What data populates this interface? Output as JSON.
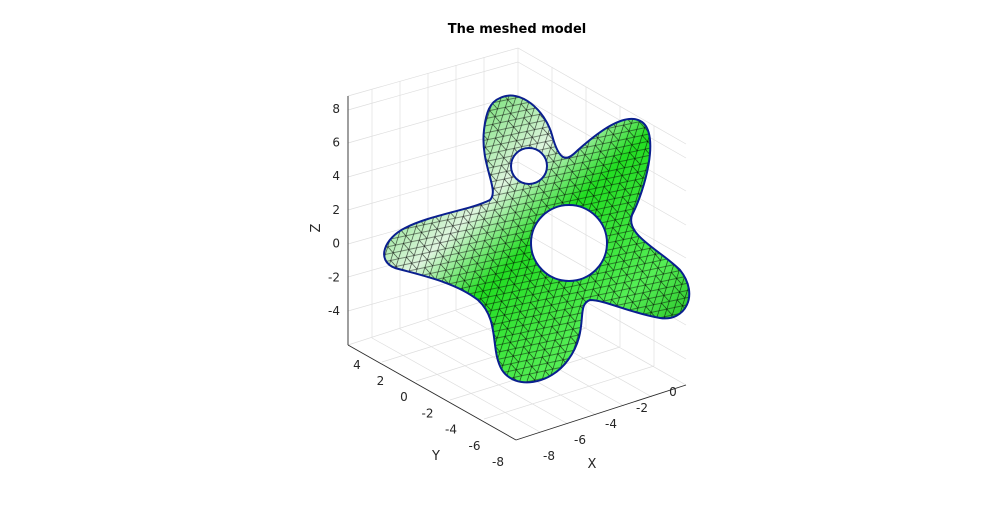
{
  "chart_data": {
    "type": "surface",
    "title": "The meshed model",
    "xlabel": "X",
    "ylabel": "Y",
    "zlabel": "Z",
    "x_ticks": [
      "-8",
      "-6",
      "-4",
      "-2",
      "0"
    ],
    "y_ticks": [
      "-8",
      "-6",
      "-4",
      "-2",
      "0",
      "2",
      "4"
    ],
    "z_ticks": [
      "-4",
      "-2",
      "0",
      "2",
      "4",
      "6",
      "8"
    ],
    "grid": true,
    "face_color": "#00cc00",
    "edge_color": "#000000",
    "boundary_color": "#0a1f8f",
    "highlight_color": "#e8f7e8"
  }
}
